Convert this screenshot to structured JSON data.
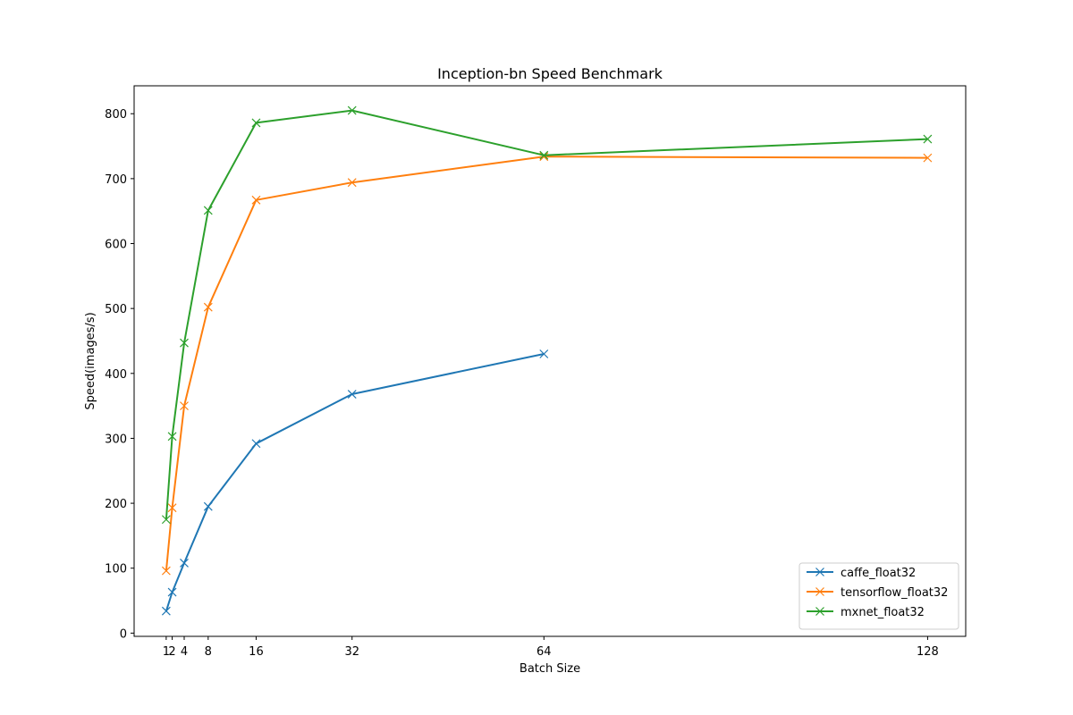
{
  "chart_data": {
    "type": "line",
    "title": "Inception-bn Speed Benchmark",
    "xlabel": "Batch Size",
    "ylabel": "Speed(images/s)",
    "x": [
      1,
      2,
      4,
      8,
      16,
      32,
      64,
      128
    ],
    "xticks": [
      1,
      2,
      4,
      8,
      16,
      32,
      64,
      128
    ],
    "xlim": [
      -4.35,
      134.35
    ],
    "yticks": [
      0,
      100,
      200,
      300,
      400,
      500,
      600,
      700,
      800
    ],
    "ylim": [
      -5,
      843
    ],
    "grid": false,
    "legend_position": "bottom-right",
    "marker": "x",
    "series": [
      {
        "name": "caffe_float32",
        "color": "#1f77b4",
        "x": [
          1,
          2,
          4,
          8,
          16,
          32,
          64
        ],
        "values": [
          34,
          63,
          108,
          195,
          292,
          368,
          430
        ]
      },
      {
        "name": "tensorflow_float32",
        "color": "#ff7f0e",
        "x": [
          1,
          2,
          4,
          8,
          16,
          32,
          64,
          128
        ],
        "values": [
          96,
          193,
          350,
          502,
          667,
          694,
          734,
          732
        ]
      },
      {
        "name": "mxnet_float32",
        "color": "#2ca02c",
        "x": [
          1,
          2,
          4,
          8,
          16,
          32,
          64,
          128
        ],
        "values": [
          175,
          303,
          447,
          651,
          786,
          805,
          736,
          761
        ]
      }
    ]
  }
}
